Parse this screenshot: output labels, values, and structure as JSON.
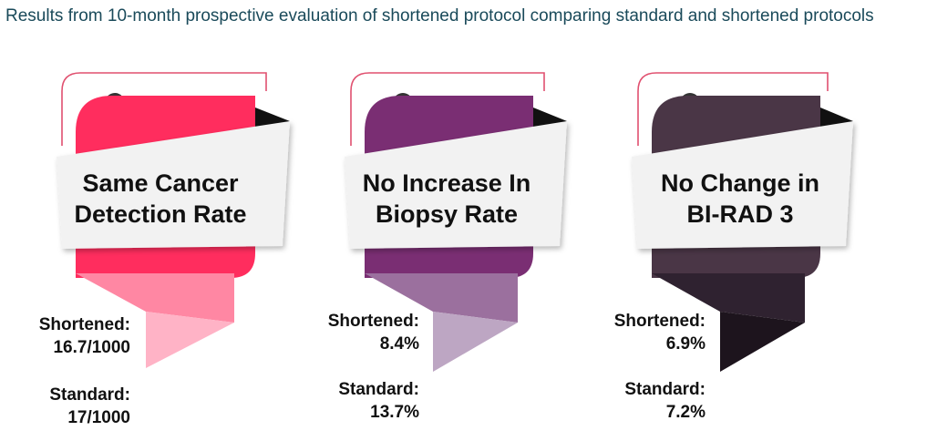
{
  "title": "Results from 10-month prospective evaluation of shortened protocol comparing standard and shortened protocols",
  "cards": [
    {
      "line1": "Same Cancer",
      "line2": "Detection Rate",
      "shortened_label": "Shortened:",
      "shortened_value": "16.7/1000",
      "standard_label": "Standard:",
      "standard_value": "17/1000",
      "color_main": "#ff2d5e",
      "color_fold": "#ff87a3",
      "color_tail": "#ffb3c6",
      "color_dot": "#333333"
    },
    {
      "line1": "No Increase In",
      "line2": "Biopsy Rate",
      "shortened_label": "Shortened:",
      "shortened_value": "8.4%",
      "standard_label": "Standard:",
      "standard_value": "13.7%",
      "color_main": "#7a2e73",
      "color_fold": "#9b709e",
      "color_tail": "#bda6c3",
      "color_dot": "#333333"
    },
    {
      "line1": "No Change in",
      "line2": "BI-RAD 3",
      "shortened_label": "Shortened:",
      "shortened_value": "6.9%",
      "standard_label": "Standard:",
      "standard_value": "7.2%",
      "color_main": "#4a3646",
      "color_fold": "#2f2230",
      "color_tail": "#1d141d",
      "color_dot": "#333333"
    }
  ],
  "accent_line_color": "#e0506f"
}
